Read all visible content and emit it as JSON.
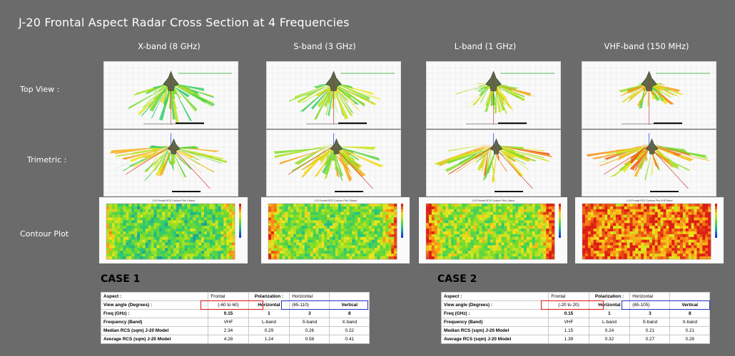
{
  "title": "J-20 Frontal Aspect Radar Cross Section at 4 Frequencies",
  "columns": [
    "X-band (8 GHz)",
    "S-band (3 GHz)",
    "L-band (1 GHz)",
    "VHF-band (150 MHz)"
  ],
  "rows": [
    "Top View :",
    "Trimetric :",
    "Contour Plot"
  ],
  "contour_titles": [
    "J-20 Frontal RCS Contour Plot X-Band",
    "J-20 Frontal RCS Contour Plot S-Band",
    "J-20 Frontal RCS Contour Plot L-Band",
    "J-20 Frontal RCS Contour Plot VHF-Band"
  ],
  "colors": {
    "background": "#6b6b6b",
    "red_box": "#e01010",
    "blue_box": "#2030c0"
  },
  "cases": [
    {
      "label": "CASE 1",
      "aspect": {
        "label": "Aspect :",
        "v1": "Frontal",
        "v2": "Polarization :",
        "v3": "Horizontal"
      },
      "view": {
        "label": "View angle (Degrees) :",
        "v1": "(-60 to 60)",
        "v2": "Horizontal",
        "v3": "(65-110)",
        "v4": "Vertical"
      },
      "freq": {
        "label": "Freq (GHz) :",
        "values": [
          "0.15",
          "1",
          "3",
          "8"
        ]
      },
      "band": {
        "label": "Frequency (Band)",
        "values": [
          "VHF",
          "L-band",
          "S-band",
          "X-band"
        ]
      },
      "median": {
        "label": "Median RCS (sqm) J-20 Model",
        "values": [
          "2.34",
          "0.29",
          "0.26",
          "0.22"
        ]
      },
      "average": {
        "label": "Average RCS (sqm) J-20 Model",
        "values": [
          "4.28",
          "1.24",
          "0.58",
          "0.41"
        ]
      }
    },
    {
      "label": "CASE 2",
      "aspect": {
        "label": "Aspect :",
        "v1": "Frontal",
        "v2": "Polarization :",
        "v3": "Horizontal"
      },
      "view": {
        "label": "View angle (Degrees) :",
        "v1": "(-20 to 20)",
        "v2": "Horizontal",
        "v3": "(65-105)",
        "v4": "Vertical"
      },
      "freq": {
        "label": "Freq (GHz) :",
        "values": [
          "0.15",
          "1",
          "3",
          "8"
        ]
      },
      "band": {
        "label": "Frequency (Band)",
        "values": [
          "VHF",
          "L-band",
          "S-band",
          "X-band"
        ]
      },
      "median": {
        "label": "Median RCS (sqm) J-20 Model",
        "values": [
          "1.15",
          "0.24",
          "0.21",
          "0.21"
        ]
      },
      "average": {
        "label": "Average RCS (sqm) J-20 Model",
        "values": [
          "1.39",
          "0.32",
          "0.27",
          "0.28"
        ]
      }
    }
  ]
}
